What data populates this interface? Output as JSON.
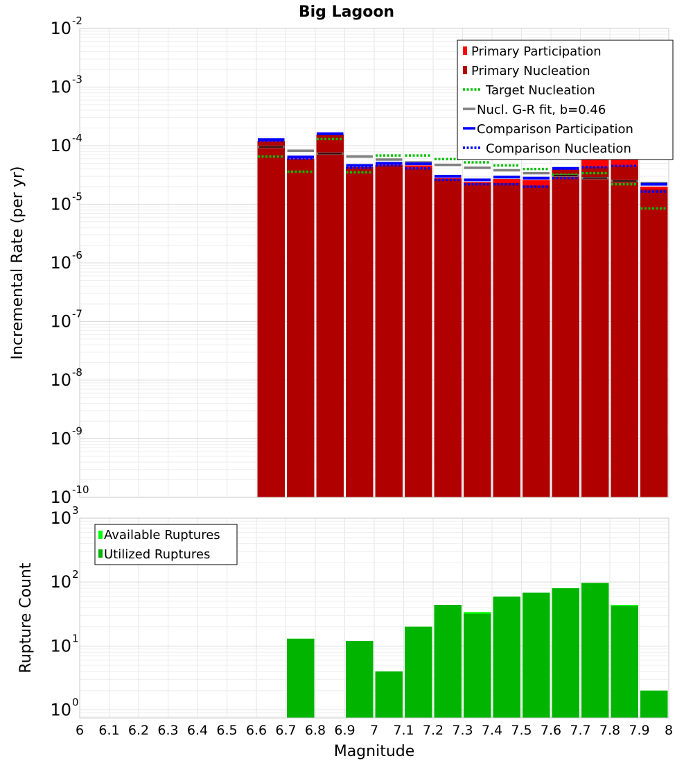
{
  "chart_data": [
    {
      "type": "bar",
      "title": "Big Lagoon",
      "xlabel": "",
      "ylabel": "Incremental Rate (per yr)",
      "yscale": "log",
      "ylim": [
        1e-10,
        0.01
      ],
      "xlim": [
        6,
        8
      ],
      "grid": true,
      "legend_placement": "top-right",
      "bin_centers": [
        6.65,
        6.75,
        6.85,
        6.95,
        7.05,
        7.15,
        7.25,
        7.35,
        7.45,
        7.55,
        7.65,
        7.75,
        7.85,
        7.95
      ],
      "series": [
        {
          "name": "Primary Participation",
          "kind": "bar",
          "color": "#ff0000",
          "values": [
            0.00012,
            6e-05,
            0.000155,
            4.3e-05,
            4.7e-05,
            4.6e-05,
            2.8e-05,
            2.4e-05,
            2.7e-05,
            2.6e-05,
            3.9e-05,
            5.8e-05,
            6.2e-05,
            2e-05
          ]
        },
        {
          "name": "Primary Nucleation",
          "kind": "bar",
          "color": "#b00000",
          "values": [
            0.00012,
            6e-05,
            0.000155,
            4.3e-05,
            4.7e-05,
            4.1e-05,
            2.7e-05,
            2.3e-05,
            2.3e-05,
            2.1e-05,
            3.9e-05,
            4.3e-05,
            4.5e-05,
            1.8e-05
          ]
        },
        {
          "name": "Target Nucleation",
          "kind": "dotted",
          "color": "#00c000",
          "values": [
            6.5e-05,
            3.6e-05,
            0.00013,
            3.5e-05,
            6.8e-05,
            6.8e-05,
            5.9e-05,
            5.2e-05,
            4.6e-05,
            4e-05,
            3.2e-05,
            3.4e-05,
            2.2e-05,
            8.5e-06
          ]
        },
        {
          "name": "Nucl. G-R fit, b=0.46",
          "kind": "line",
          "color": "#808080",
          "values": [
            9.5e-05,
            8.2e-05,
            7.3e-05,
            6.5e-05,
            5.8e-05,
            5.2e-05,
            4.7e-05,
            4.2e-05,
            3.8e-05,
            3.4e-05,
            3.1e-05,
            2.8e-05,
            2.5e-05,
            2.3e-05
          ]
        },
        {
          "name": "Comparison Participation",
          "kind": "line",
          "color": "#0000ff",
          "values": [
            0.000127,
            6.4e-05,
            0.00016,
            4.6e-05,
            5e-05,
            4.9e-05,
            3e-05,
            2.6e-05,
            2.9e-05,
            2.8e-05,
            4.1e-05,
            6.1e-05,
            6.5e-05,
            2.2e-05
          ]
        },
        {
          "name": "Comparison Nucleation",
          "kind": "dotted",
          "color": "#0000ff",
          "values": [
            0.00012,
            6e-05,
            0.00016,
            4.2e-05,
            4.6e-05,
            4.1e-05,
            2.6e-05,
            2.2e-05,
            2.2e-05,
            2e-05,
            2.8e-05,
            4.3e-05,
            4.5e-05,
            1.65e-05
          ]
        }
      ]
    },
    {
      "type": "bar",
      "title": "",
      "xlabel": "Magnitude",
      "ylabel": "Rupture Count",
      "yscale": "log",
      "ylim": [
        0.75,
        1000
      ],
      "xlim": [
        6,
        8
      ],
      "grid": true,
      "legend_placement": "top-left",
      "bin_centers": [
        6.75,
        6.95,
        7.05,
        7.15,
        7.25,
        7.35,
        7.45,
        7.55,
        7.65,
        7.75,
        7.85,
        7.95
      ],
      "series": [
        {
          "name": "Available Ruptures",
          "kind": "bar",
          "color": "#00ff00",
          "values": [
            13,
            12,
            4,
            20,
            44,
            34,
            59,
            68,
            80,
            97,
            44,
            2
          ]
        },
        {
          "name": "Utilized Ruptures",
          "kind": "bar",
          "color": "#00b400",
          "values": [
            13,
            12,
            4,
            20,
            44,
            32,
            59,
            68,
            80,
            97,
            42,
            2
          ]
        }
      ]
    }
  ],
  "x_tick_labels": [
    "6",
    "6.1",
    "6.2",
    "6.3",
    "6.4",
    "6.5",
    "6.6",
    "6.7",
    "6.8",
    "6.9",
    "7",
    "7.1",
    "7.2",
    "7.3",
    "7.4",
    "7.5",
    "7.6",
    "7.7",
    "7.8",
    "7.9",
    "8"
  ],
  "top_y_tick_exponents": [
    "-2",
    "-3",
    "-4",
    "-5",
    "-6",
    "-7",
    "-8",
    "-9",
    "-10"
  ],
  "bottom_y_tick_exponents": [
    "3",
    "2",
    "1",
    "0"
  ],
  "y_tick_base": "10"
}
